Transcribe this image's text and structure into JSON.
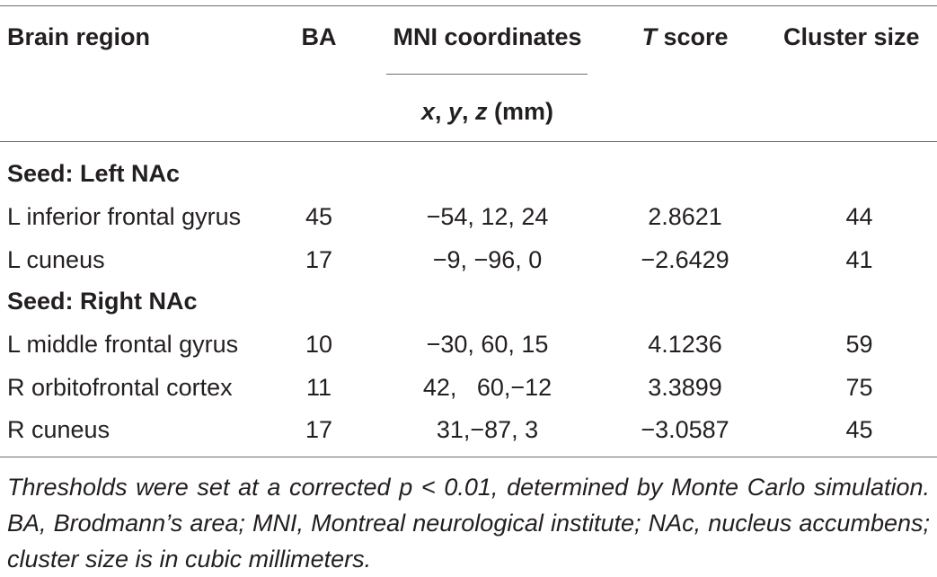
{
  "table": {
    "headers": {
      "region": "Brain region",
      "ba": "BA",
      "mni": "MNI coordinates",
      "t_prefix": "T",
      "t_suffix": " score",
      "cluster": "Cluster size",
      "mni_sub_x": "x",
      "mni_sub_sep1": ", ",
      "mni_sub_y": "y",
      "mni_sub_sep2": ", ",
      "mni_sub_z": "z",
      "mni_sub_unit": " (mm)"
    },
    "sections": [
      {
        "label": "Seed: Left NAc",
        "rows": [
          {
            "region": "L inferior frontal gyrus",
            "ba": "45",
            "mni": "−54, 12, 24",
            "t": "2.8621",
            "size": "44"
          },
          {
            "region": "L cuneus",
            "ba": "17",
            "mni": "−9, −96, 0",
            "t": "−2.6429",
            "size": "41"
          }
        ]
      },
      {
        "label": "Seed: Right NAc",
        "rows": [
          {
            "region": "L middle frontal gyrus",
            "ba": "10",
            "mni": "−30, 60, 15",
            "t": "4.1236",
            "size": "59"
          },
          {
            "region": "R orbitofrontal cortex",
            "ba": "11",
            "mni": "42,   60,−12",
            "t": "3.3899",
            "size": "75"
          },
          {
            "region": "R cuneus",
            "ba": "17",
            "mni": "31,−87, 3",
            "t": "−3.0587",
            "size": "45"
          }
        ]
      }
    ],
    "footnote": "Thresholds were set at a corrected p < 0.01, determined by Monte Carlo simulation. BA, Brodmann’s area; MNI, Montreal neurological institute; NAc, nucleus accumbens; cluster size is in cubic millimeters."
  }
}
